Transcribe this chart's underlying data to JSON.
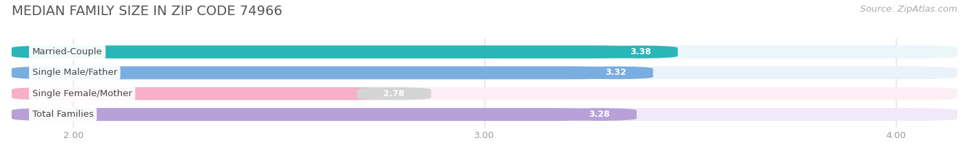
{
  "title": "MEDIAN FAMILY SIZE IN ZIP CODE 74966",
  "source": "Source: ZipAtlas.com",
  "categories": [
    "Married-Couple",
    "Single Male/Father",
    "Single Female/Mother",
    "Total Families"
  ],
  "values": [
    3.38,
    3.32,
    2.78,
    3.28
  ],
  "bar_colors": [
    "#2ab5b8",
    "#7aade0",
    "#f8afc8",
    "#b8a0d8"
  ],
  "bar_bg_colors": [
    "#eaf6f7",
    "#eaf2fa",
    "#fceef5",
    "#f0eaf8"
  ],
  "value_badge_colors": [
    "#2ab5b8",
    "#7aade0",
    "#d4d4d4",
    "#b8a0d8"
  ],
  "x_min": 1.85,
  "x_max": 4.15,
  "x_ticks": [
    2.0,
    3.0,
    4.0
  ],
  "x_tick_labels": [
    "2.00",
    "3.00",
    "4.00"
  ],
  "bar_height": 0.62,
  "fig_width": 14.06,
  "fig_height": 2.33,
  "title_fontsize": 14,
  "label_fontsize": 9.5,
  "value_fontsize": 9.0,
  "tick_fontsize": 9.5,
  "source_fontsize": 9.5,
  "background_color": "#ffffff",
  "grid_color": "#e0e0e0"
}
